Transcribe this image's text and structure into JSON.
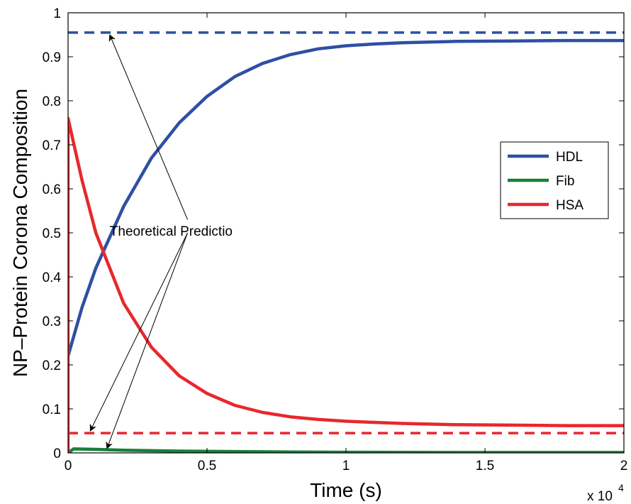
{
  "chart_data": {
    "type": "line",
    "title": "",
    "xlabel": "Time (s)",
    "ylabel": "NP–Protein Corona Composition",
    "x_multiplier": "x 10",
    "x_multiplier_exp": "4",
    "xlim": [
      0,
      20000
    ],
    "ylim": [
      0,
      1
    ],
    "xticks": [
      0,
      5000,
      10000,
      15000,
      20000
    ],
    "xtick_labels": [
      "0",
      "0.5",
      "1",
      "1.5",
      "2"
    ],
    "yticks": [
      0,
      0.1,
      0.2,
      0.3,
      0.4,
      0.5,
      0.6,
      0.7,
      0.8,
      0.9,
      1
    ],
    "ytick_labels": [
      "0",
      "0.1",
      "0.2",
      "0.3",
      "0.4",
      "0.5",
      "0.6",
      "0.7",
      "0.8",
      "0.9",
      "1"
    ],
    "grid": false,
    "legend_position": "right",
    "series": [
      {
        "name": "HDL",
        "color": "#2e4fa3",
        "style": "solid",
        "x": [
          0,
          500,
          1000,
          2000,
          3000,
          4000,
          5000,
          6000,
          7000,
          8000,
          9000,
          10000,
          11000,
          12000,
          14000,
          16000,
          18000,
          20000
        ],
        "y": [
          0.22,
          0.33,
          0.42,
          0.56,
          0.67,
          0.75,
          0.81,
          0.855,
          0.885,
          0.905,
          0.918,
          0.925,
          0.929,
          0.932,
          0.935,
          0.936,
          0.937,
          0.937
        ]
      },
      {
        "name": "Fib",
        "color": "#17803a",
        "style": "solid",
        "x": [
          0,
          200,
          1000,
          2000,
          4000,
          6000,
          8000,
          10000,
          15000,
          20000
        ],
        "y": [
          0.0,
          0.009,
          0.008,
          0.006,
          0.004,
          0.003,
          0.002,
          0.0015,
          0.001,
          0.001
        ]
      },
      {
        "name": "HSA",
        "color": "#e8272d",
        "style": "solid",
        "x": [
          0,
          0,
          500,
          1000,
          2000,
          3000,
          4000,
          5000,
          6000,
          7000,
          8000,
          9000,
          10000,
          12000,
          14000,
          16000,
          18000,
          20000
        ],
        "y": [
          0.0,
          0.76,
          0.62,
          0.5,
          0.34,
          0.24,
          0.175,
          0.135,
          0.108,
          0.092,
          0.082,
          0.076,
          0.072,
          0.067,
          0.064,
          0.063,
          0.062,
          0.062
        ]
      }
    ],
    "reference_lines": [
      {
        "color": "#2e4fa3",
        "style": "dashed",
        "y": 0.955
      },
      {
        "color": "#e8272d",
        "style": "dashed",
        "y": 0.045
      }
    ],
    "annotations": [
      {
        "text": "Theoretical Predictio",
        "arrows": [
          {
            "from": [
              4300,
              0.53
            ],
            "to": [
              1500,
              0.95
            ]
          },
          {
            "from": [
              4300,
              0.5
            ],
            "to": [
              800,
              0.05
            ]
          },
          {
            "from": [
              4300,
              0.5
            ],
            "to": [
              1400,
              0.01
            ]
          }
        ]
      }
    ]
  }
}
